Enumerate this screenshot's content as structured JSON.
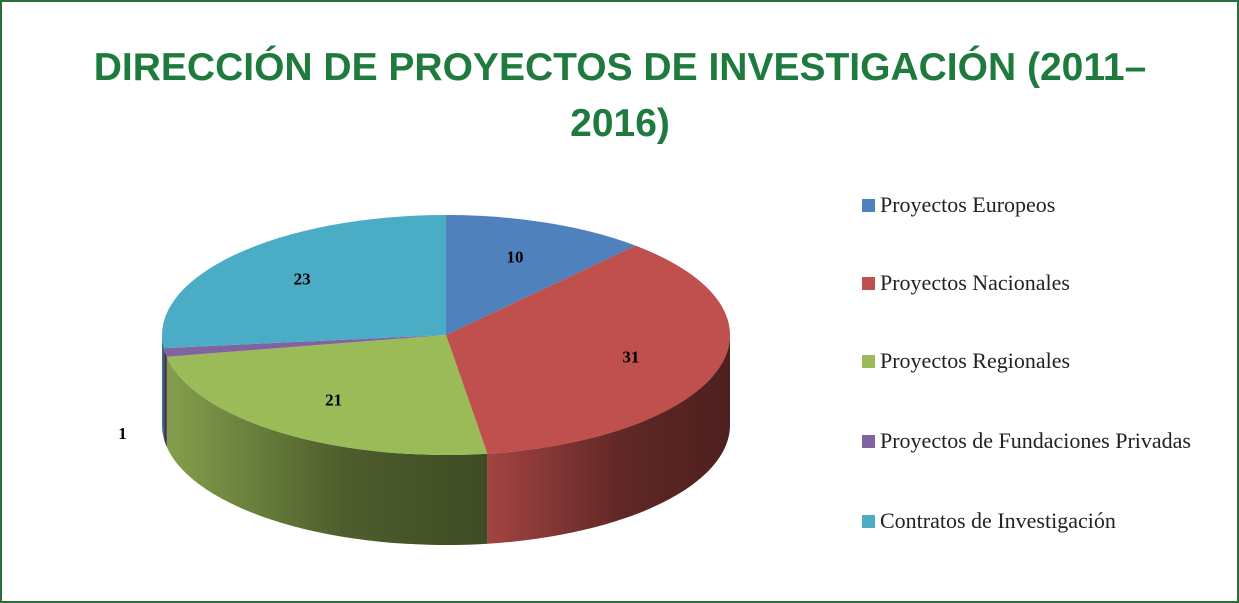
{
  "chart_data": {
    "type": "pie3d",
    "title": "DIRECCIÓN DE PROYECTOS DE INVESTIGACIÓN (2011–2016)",
    "categories": [
      "Proyectos Europeos",
      "Proyectos Nacionales",
      "Proyectos Regionales",
      "Proyectos de Fundaciones Privadas",
      "Contratos de Investigación"
    ],
    "values": [
      10,
      31,
      21,
      1,
      23
    ],
    "colors": [
      "#4f81bd",
      "#c0504d",
      "#9bbb59",
      "#8064a2",
      "#4bacc6"
    ],
    "legend": "right"
  }
}
